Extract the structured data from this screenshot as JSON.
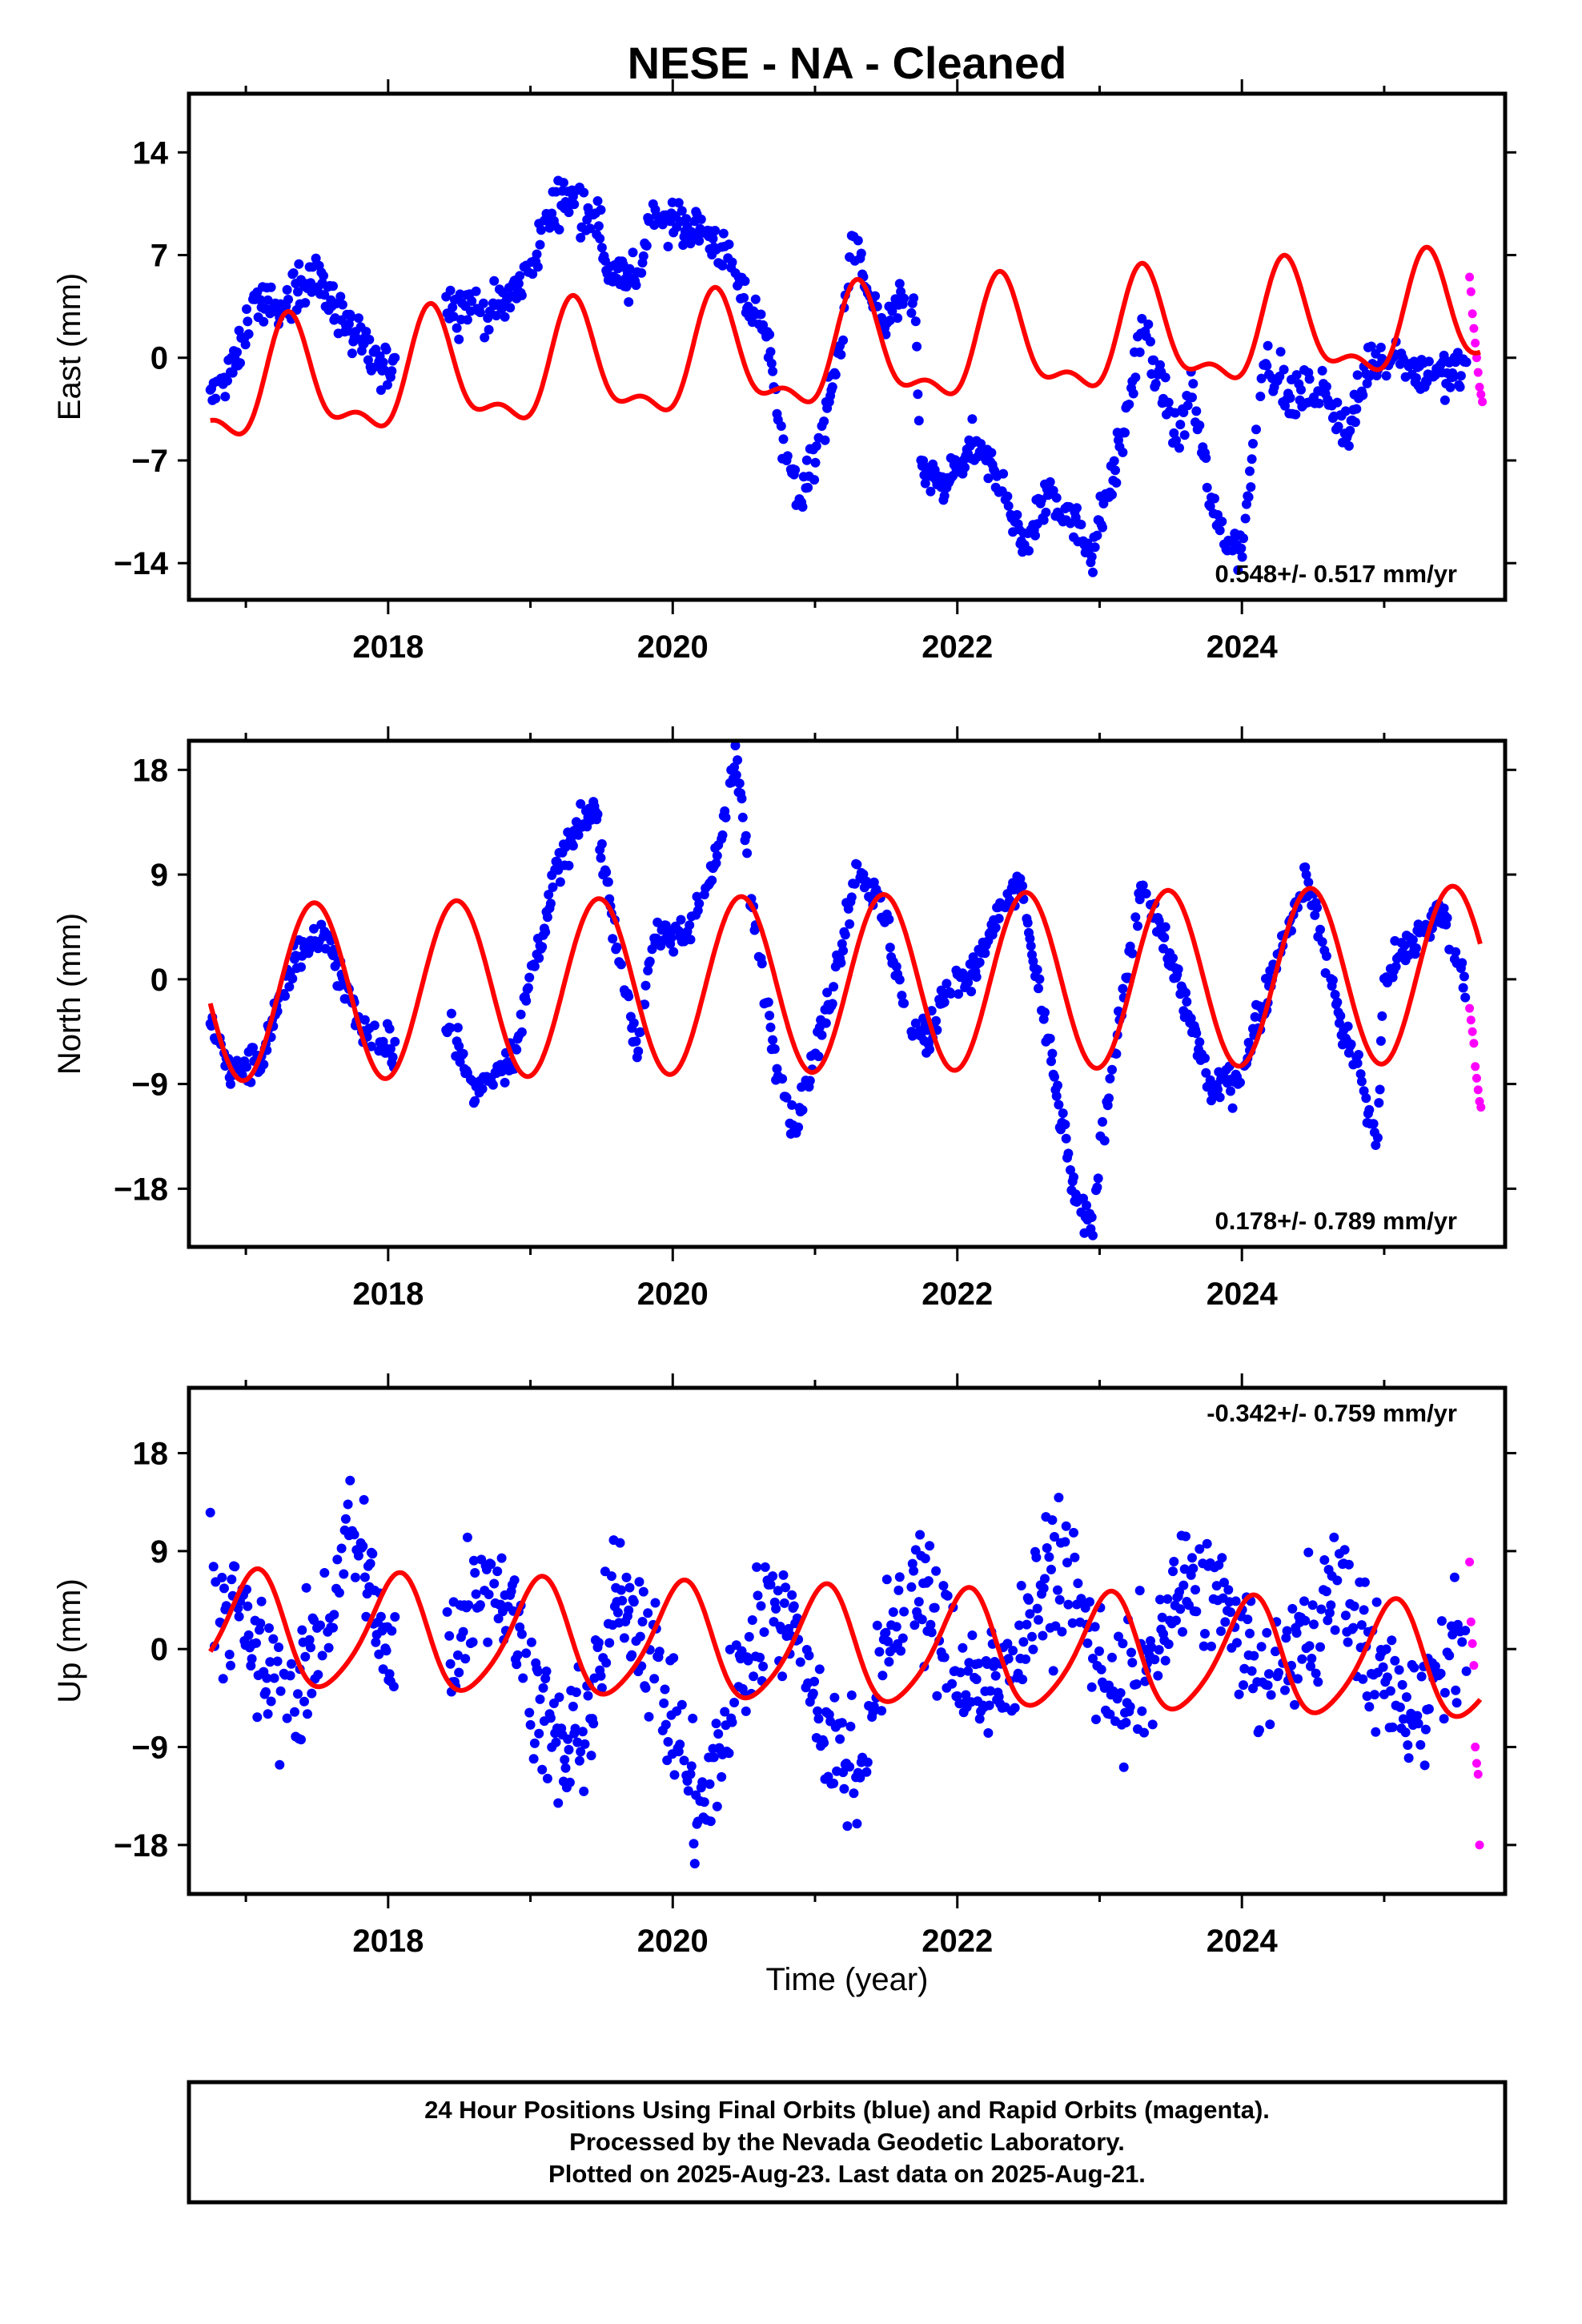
{
  "chart_data": {
    "title": "NESE  - NA - Cleaned",
    "xlabel": "Time (year)",
    "xlim": [
      2016.6,
      2025.85
    ],
    "xticks": [
      2018,
      2020,
      2022,
      2024
    ],
    "xtick_labels": [
      "2018",
      "2020",
      "2022",
      "2024"
    ],
    "colors": {
      "final": "#0000ff",
      "rapid": "#ff00ff",
      "model": "#ff0000"
    },
    "legend_note": [
      "24 Hour Positions Using Final Orbits (blue) and Rapid Orbits (magenta).",
      "Processed by the Nevada Geodetic Laboratory.",
      "Plotted on 2025-Aug-23. Last data on 2025-Aug-21."
    ],
    "panels": [
      {
        "id": "east",
        "type": "scatter",
        "ylabel": "East (mm)",
        "ylim": [
          -16.5,
          18
        ],
        "yticks": [
          -14,
          -7,
          0,
          7,
          14
        ],
        "ytick_labels": [
          "-14",
          "-7",
          "0",
          "7",
          "14"
        ],
        "rate_label": "0.548+/- 0.517 mm/yr",
        "rate_position": "bottom-right",
        "final_series_keypoints": [
          [
            2016.75,
            -3
          ],
          [
            2016.95,
            0
          ],
          [
            2017.05,
            4
          ],
          [
            2017.25,
            3
          ],
          [
            2017.45,
            6
          ],
          [
            2017.6,
            4
          ],
          [
            2017.8,
            1
          ],
          [
            2017.95,
            -1
          ],
          [
            2018.4,
            4
          ],
          [
            2018.7,
            3
          ],
          [
            2018.95,
            5
          ],
          [
            2019.2,
            11
          ],
          [
            2019.45,
            10
          ],
          [
            2019.55,
            6
          ],
          [
            2019.75,
            5
          ],
          [
            2019.85,
            10
          ],
          [
            2020.1,
            9
          ],
          [
            2020.3,
            8
          ],
          [
            2020.5,
            4
          ],
          [
            2020.65,
            2
          ],
          [
            2020.8,
            -7
          ],
          [
            2020.9,
            -10
          ],
          [
            2021.05,
            -5
          ],
          [
            2021.2,
            2
          ],
          [
            2021.25,
            8
          ],
          [
            2021.45,
            2
          ],
          [
            2021.7,
            4
          ],
          [
            2021.75,
            -8
          ],
          [
            2021.9,
            -9
          ],
          [
            2022.1,
            -6
          ],
          [
            2022.35,
            -9
          ],
          [
            2022.45,
            -13
          ],
          [
            2022.65,
            -9
          ],
          [
            2022.8,
            -11
          ],
          [
            2022.95,
            -13
          ],
          [
            2023.15,
            -6
          ],
          [
            2023.3,
            2
          ],
          [
            2023.5,
            -4
          ],
          [
            2023.55,
            -6
          ],
          [
            2023.65,
            -2
          ],
          [
            2023.8,
            -11
          ],
          [
            2024.0,
            -13
          ],
          [
            2024.15,
            0
          ],
          [
            2024.35,
            -3
          ],
          [
            2024.55,
            -2
          ],
          [
            2024.75,
            -5
          ],
          [
            2024.9,
            0
          ],
          [
            2025.1,
            0
          ],
          [
            2025.25,
            -1
          ],
          [
            2025.45,
            -1
          ]
        ],
        "rapid_points": [
          [
            2025.6,
            5.5
          ],
          [
            2025.61,
            4.5
          ],
          [
            2025.62,
            3.0
          ],
          [
            2025.63,
            2.0
          ],
          [
            2025.64,
            1.0
          ],
          [
            2025.65,
            0
          ],
          [
            2025.66,
            -1.0
          ],
          [
            2025.67,
            -2.0
          ],
          [
            2025.68,
            -2.5
          ],
          [
            2025.69,
            -3.0
          ]
        ],
        "model": {
          "mean": 0,
          "trend": 0.548,
          "ann_amp": 3.6,
          "ann_phase": 5.9,
          "semi_amp": 1.6,
          "semi_phase": 4.2,
          "ref_year": 2021.0
        }
      },
      {
        "id": "north",
        "type": "scatter",
        "ylabel": "North (mm)",
        "ylim": [
          -23,
          20.5
        ],
        "yticks": [
          -18,
          -9,
          0,
          9,
          18
        ],
        "ytick_labels": [
          "-18",
          "-9",
          "0",
          "9",
          "18"
        ],
        "rate_label": "0.178+/- 0.789 mm/yr",
        "rate_position": "bottom-right",
        "final_series_keypoints": [
          [
            2016.75,
            -4
          ],
          [
            2016.9,
            -8
          ],
          [
            2017.1,
            -7
          ],
          [
            2017.35,
            2
          ],
          [
            2017.55,
            4
          ],
          [
            2017.8,
            -4
          ],
          [
            2017.95,
            -6
          ],
          [
            2018.45,
            -4
          ],
          [
            2018.6,
            -10
          ],
          [
            2018.9,
            -6
          ],
          [
            2019.0,
            0
          ],
          [
            2019.2,
            10
          ],
          [
            2019.45,
            15
          ],
          [
            2019.65,
            0
          ],
          [
            2019.75,
            -6
          ],
          [
            2019.85,
            3
          ],
          [
            2020.1,
            4
          ],
          [
            2020.3,
            10
          ],
          [
            2020.45,
            19
          ],
          [
            2020.55,
            7
          ],
          [
            2020.7,
            -5
          ],
          [
            2020.85,
            -13
          ],
          [
            2021.1,
            -2
          ],
          [
            2021.3,
            10
          ],
          [
            2021.5,
            5
          ],
          [
            2021.65,
            -4
          ],
          [
            2021.8,
            -5
          ],
          [
            2021.9,
            -1
          ],
          [
            2022.1,
            0
          ],
          [
            2022.3,
            6
          ],
          [
            2022.45,
            8
          ],
          [
            2022.7,
            -10
          ],
          [
            2022.85,
            -20
          ],
          [
            2022.95,
            -21
          ],
          [
            2023.1,
            -6
          ],
          [
            2023.3,
            8
          ],
          [
            2023.55,
            0
          ],
          [
            2023.8,
            -10
          ],
          [
            2024.0,
            -8
          ],
          [
            2024.2,
            0
          ],
          [
            2024.45,
            9
          ],
          [
            2024.7,
            -4
          ],
          [
            2024.85,
            -9
          ],
          [
            2024.95,
            -15
          ],
          [
            2025.0,
            0
          ],
          [
            2025.2,
            3
          ],
          [
            2025.4,
            6
          ],
          [
            2025.55,
            0
          ]
        ],
        "rapid_points": [
          [
            2025.6,
            -2.5
          ],
          [
            2025.61,
            -3.5
          ],
          [
            2025.62,
            -4.5
          ],
          [
            2025.63,
            -5.5
          ],
          [
            2025.64,
            -7.5
          ],
          [
            2025.65,
            -8.5
          ],
          [
            2025.66,
            -9.5
          ],
          [
            2025.67,
            -10.5
          ],
          [
            2025.68,
            -11.0
          ]
        ],
        "model": {
          "mean": -0.4,
          "trend": 0.178,
          "ann_amp": 7.6,
          "ann_phase": -1.45,
          "semi_amp": 0.0,
          "semi_phase": 0.0,
          "ref_year": 2021.0
        }
      },
      {
        "id": "up",
        "type": "scatter",
        "ylabel": "Up (mm)",
        "ylim": [
          -22.5,
          24
        ],
        "yticks": [
          -18,
          -9,
          0,
          9,
          18
        ],
        "ytick_labels": [
          "-18",
          "-9",
          "0",
          "9",
          "18"
        ],
        "rate_label": "-0.342+/- 0.759 mm/yr",
        "rate_position": "top-right",
        "final_series_keypoints": [
          [
            2016.75,
            6
          ],
          [
            2016.95,
            3
          ],
          [
            2017.15,
            -2
          ],
          [
            2017.35,
            -5
          ],
          [
            2017.55,
            2
          ],
          [
            2017.7,
            10
          ],
          [
            2017.85,
            8
          ],
          [
            2018.0,
            -2
          ],
          [
            2018.45,
            0
          ],
          [
            2018.65,
            8
          ],
          [
            2018.85,
            4
          ],
          [
            2019.0,
            -2
          ],
          [
            2019.2,
            -10
          ],
          [
            2019.4,
            -6
          ],
          [
            2019.65,
            6
          ],
          [
            2019.85,
            0
          ],
          [
            2020.05,
            -9
          ],
          [
            2020.2,
            -16
          ],
          [
            2020.35,
            -8
          ],
          [
            2020.55,
            0
          ],
          [
            2020.7,
            6
          ],
          [
            2020.9,
            0
          ],
          [
            2021.1,
            -8
          ],
          [
            2021.3,
            -12
          ],
          [
            2021.5,
            0
          ],
          [
            2021.7,
            8
          ],
          [
            2021.9,
            0
          ],
          [
            2022.1,
            -3
          ],
          [
            2022.3,
            -4
          ],
          [
            2022.5,
            4
          ],
          [
            2022.75,
            8
          ],
          [
            2022.95,
            0
          ],
          [
            2023.15,
            -5
          ],
          [
            2023.4,
            0
          ],
          [
            2023.6,
            6
          ],
          [
            2023.8,
            6
          ],
          [
            2024.0,
            0
          ],
          [
            2024.2,
            -4
          ],
          [
            2024.45,
            2
          ],
          [
            2024.7,
            6
          ],
          [
            2024.9,
            0
          ],
          [
            2025.1,
            -6
          ],
          [
            2025.3,
            -4
          ],
          [
            2025.5,
            2
          ]
        ],
        "rapid_points": [
          [
            2025.6,
            8.0
          ],
          [
            2025.61,
            2.5
          ],
          [
            2025.62,
            0.5
          ],
          [
            2025.63,
            -1.5
          ],
          [
            2025.64,
            -9.0
          ],
          [
            2025.65,
            -10.5
          ],
          [
            2025.66,
            -11.5
          ],
          [
            2025.67,
            -18.0
          ]
        ],
        "model": {
          "mean": 0.2,
          "trend": -0.342,
          "ann_amp": 5.2,
          "ann_phase": 1.2,
          "semi_amp": 0.8,
          "semi_phase": 0.0,
          "ref_year": 2021.0
        }
      }
    ]
  }
}
